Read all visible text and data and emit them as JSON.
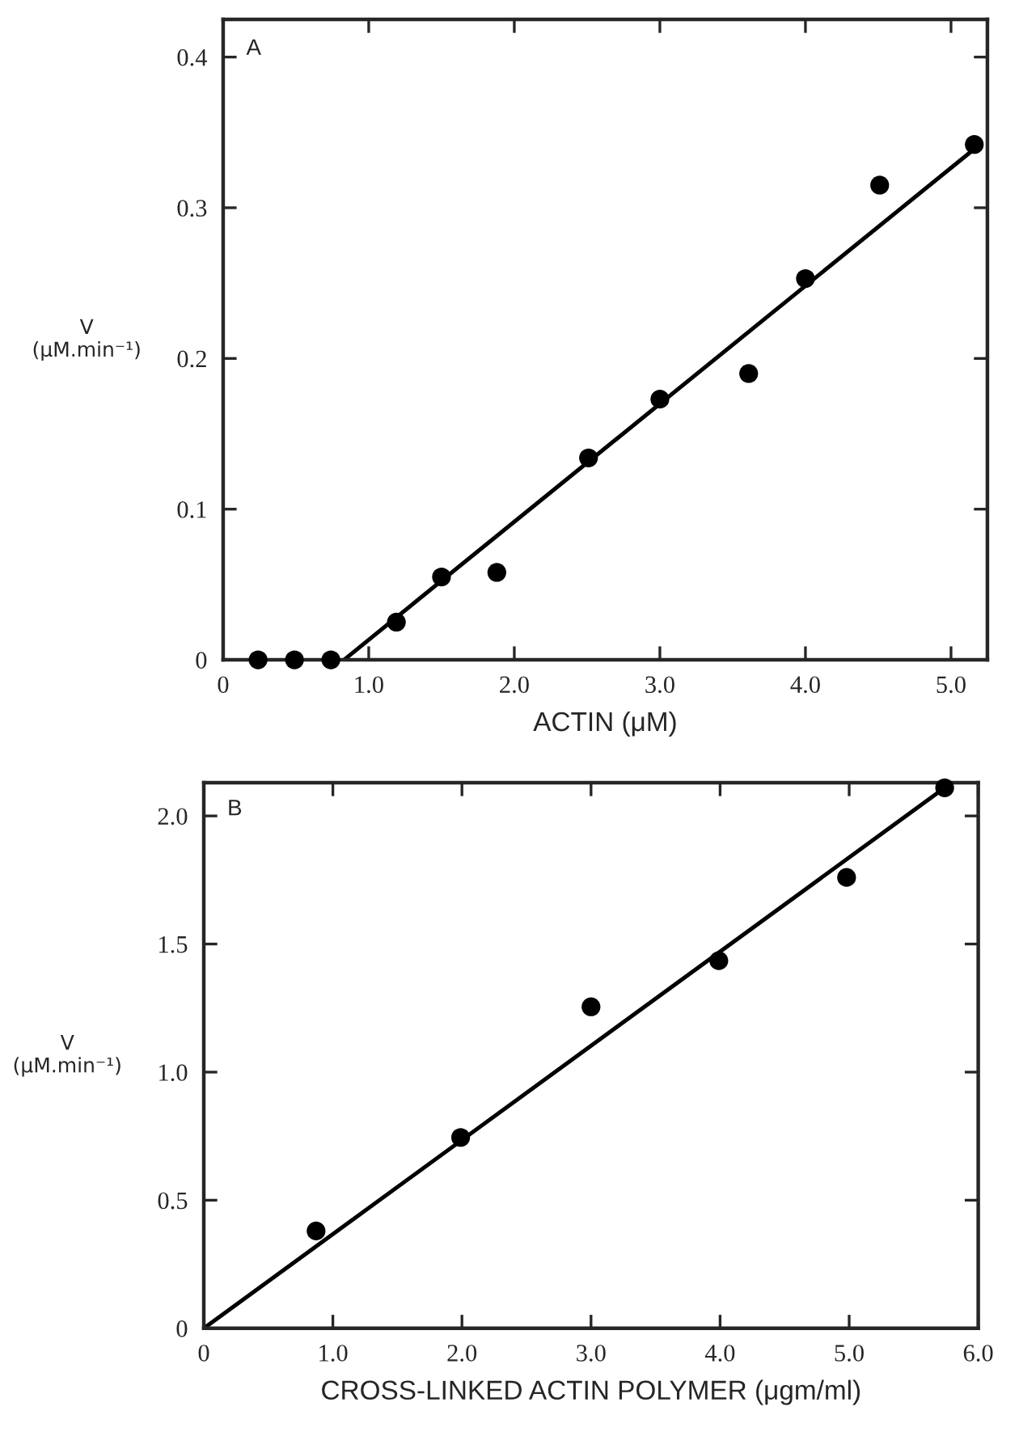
{
  "chart_data": [
    {
      "type": "scatter",
      "xlabel": "ACTIN (μM)",
      "ylabel": "V\n(μM.min⁻¹)",
      "annotations": [
        "A"
      ],
      "grid": false,
      "legend": false,
      "xlim": [
        0,
        5.25
      ],
      "ylim": [
        0,
        0.425
      ],
      "xticks": [
        0,
        {
          "value": 1,
          "label": "1.0"
        },
        {
          "value": 2,
          "label": "2.0"
        },
        {
          "value": 3,
          "label": "3.0"
        },
        {
          "value": 4,
          "label": "4.0"
        },
        {
          "value": 5,
          "label": "5.0"
        }
      ],
      "yticks": [
        0,
        0.1,
        0.2,
        0.3,
        0.4
      ],
      "series": [
        {
          "marker": "circle",
          "color": "#000000",
          "x": [
            0.24,
            0.49,
            0.74,
            1.19,
            1.5,
            1.88,
            2.51,
            3.0,
            3.61,
            4.0,
            4.51,
            5.16
          ],
          "values": [
            0,
            0,
            0,
            0.025,
            0.055,
            0.058,
            0.134,
            0.173,
            0.19,
            0.253,
            0.315,
            0.342
          ]
        },
        {
          "type": "line",
          "color": "#000000",
          "x": [
            0.83,
            5.16
          ],
          "values": [
            0,
            0.339
          ]
        }
      ]
    },
    {
      "type": "scatter",
      "xlabel": "CROSS-LINKED ACTIN POLYMER (μgm/ml)",
      "ylabel": "V\n(μM.min⁻¹)",
      "annotations": [
        "B"
      ],
      "grid": false,
      "legend": false,
      "xlim": [
        0,
        6.0
      ],
      "ylim": [
        0,
        2.13
      ],
      "xticks": [
        0,
        {
          "value": 1,
          "label": "1.0"
        },
        {
          "value": 2,
          "label": "2.0"
        },
        {
          "value": 3,
          "label": "3.0"
        },
        {
          "value": 4,
          "label": "4.0"
        },
        {
          "value": 5,
          "label": "5.0"
        },
        {
          "value": 6,
          "label": "6.0"
        }
      ],
      "yticks": [
        0,
        {
          "value": 0.5,
          "label": "0.5"
        },
        {
          "value": 1,
          "label": "1.0"
        },
        {
          "value": 1.5,
          "label": "1.5"
        },
        {
          "value": 2,
          "label": "2.0"
        }
      ],
      "series": [
        {
          "marker": "circle",
          "color": "#000000",
          "x": [
            0.87,
            1.99,
            3.0,
            3.99,
            4.98,
            5.74
          ],
          "values": [
            0.38,
            0.745,
            1.255,
            1.435,
            1.76,
            2.11
          ]
        },
        {
          "type": "line",
          "color": "#000000",
          "x": [
            0,
            5.74
          ],
          "values": [
            0,
            2.11
          ]
        }
      ]
    }
  ]
}
